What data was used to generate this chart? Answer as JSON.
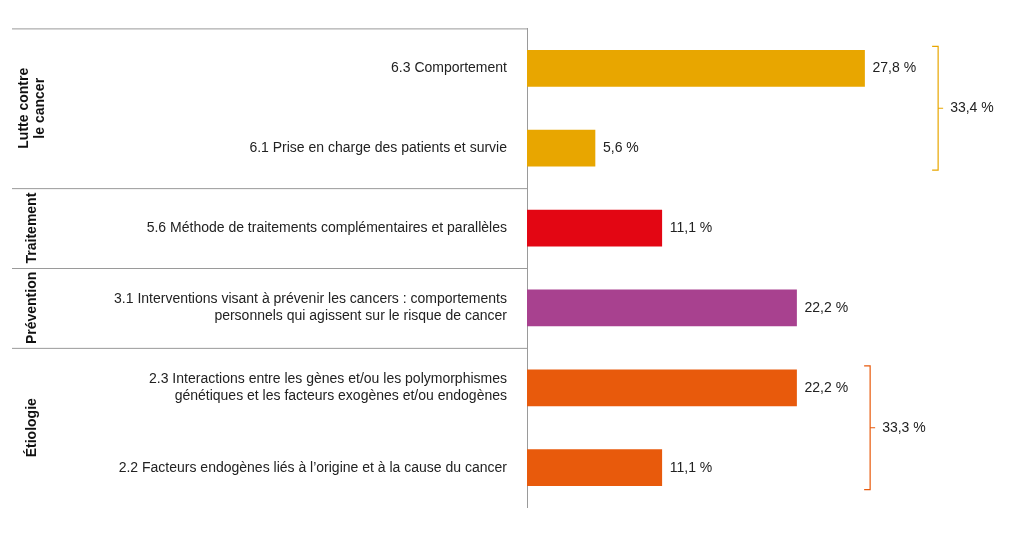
{
  "chart_data": {
    "type": "bar",
    "orientation": "horizontal",
    "categories": [
      "6.3 Comportement",
      "6.1 Prise en charge des patients et survie",
      "5.6 Méthode de traitements complémentaires et parallèles",
      "3.1 Interventions visant à prévenir les cancers : comportements personnels qui agissent sur le risque de cancer",
      "2.3 Interactions entre les gènes et/ou les polymorphismes génétiques et les facteurs exogènes et/ou endogènes",
      "2.2 Facteurs endogènes liés à l’origine et à la cause du cancer"
    ],
    "values": [
      27.8,
      5.6,
      11.1,
      22.2,
      22.2,
      11.1
    ],
    "colors": [
      "#e8a600",
      "#e8a600",
      "#e30613",
      "#a8418f",
      "#e85a0c",
      "#e85a0c"
    ],
    "value_labels": [
      "27,8 %",
      "5,6 %",
      "11,1 %",
      "22,2 %",
      "22,2 %",
      "11,1 %"
    ],
    "tick_labels": "y",
    "annotations": [
      "Lutte contre le cancer",
      "Traitement",
      "Prévention",
      "Étiologie",
      "33,4 %",
      "33,3 %"
    ]
  }
}
